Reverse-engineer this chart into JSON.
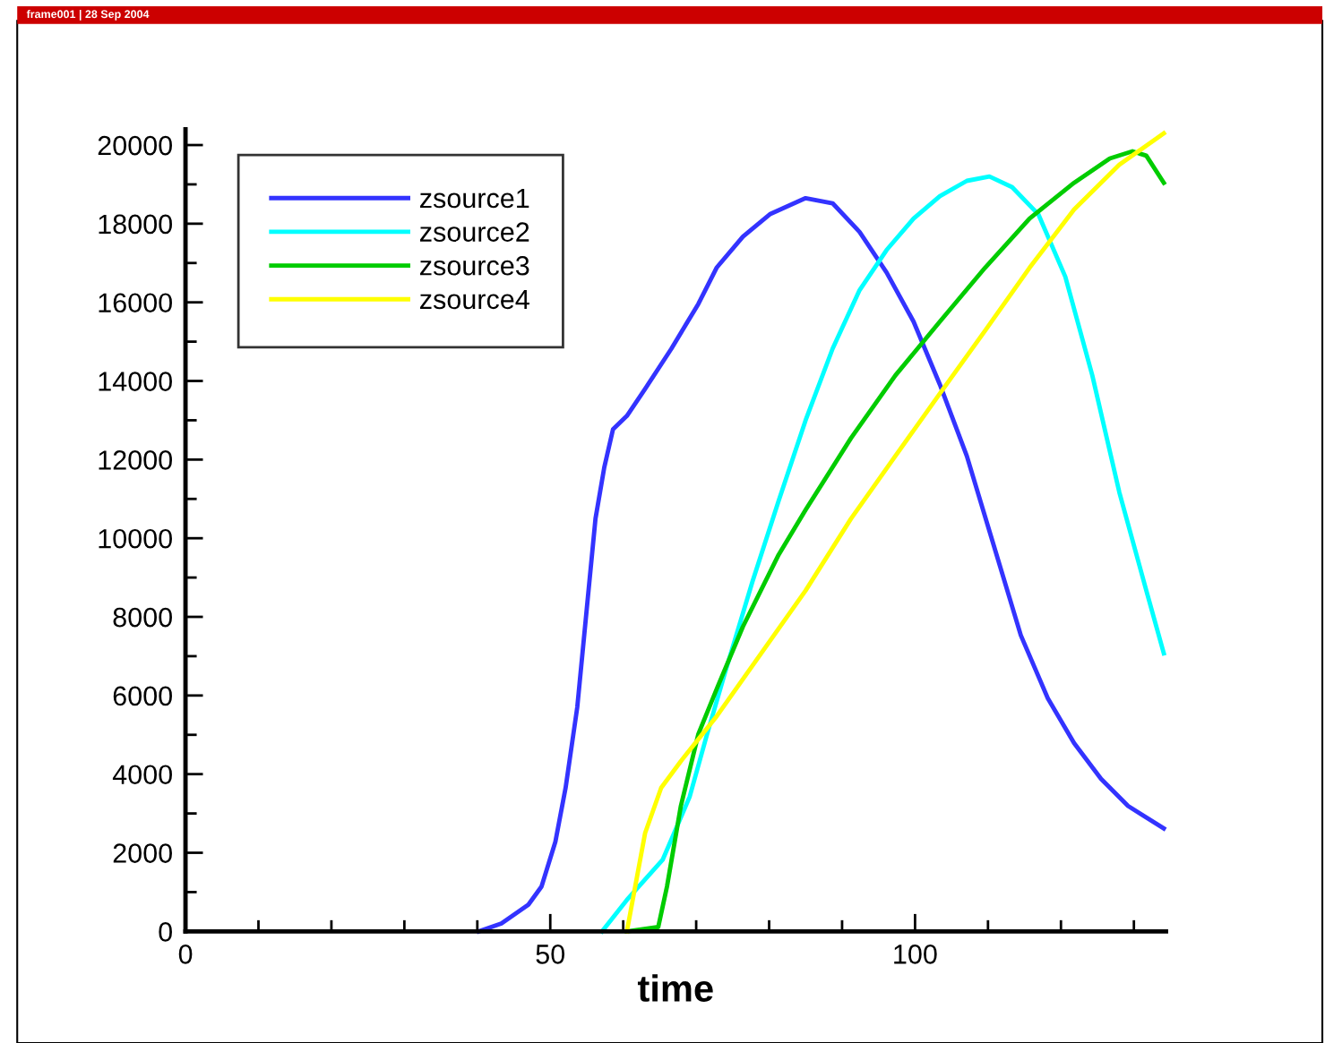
{
  "chart_data": {
    "type": "line",
    "xlabel": "time",
    "annotations": [
      "frame001 | 28 Sep 2004"
    ],
    "xlim": [
      0,
      134.4
    ],
    "ylim": [
      0,
      20400
    ],
    "xticks": [
      0,
      {
        "value": 10,
        "label": null
      },
      {
        "value": 20,
        "label": null
      },
      {
        "value": 30,
        "label": null
      },
      {
        "value": 40,
        "label": null
      },
      50,
      {
        "value": 60,
        "label": null
      },
      {
        "value": 70,
        "label": null
      },
      {
        "value": 80,
        "label": null
      },
      {
        "value": 90,
        "label": null
      },
      100,
      {
        "value": 110,
        "label": null
      },
      {
        "value": 120,
        "label": null
      },
      {
        "value": 130,
        "label": null
      }
    ],
    "yticks": [
      0,
      {
        "value": 1000,
        "label": null
      },
      2000,
      {
        "value": 3000,
        "label": null
      },
      4000,
      {
        "value": 5000,
        "label": null
      },
      6000,
      {
        "value": 7000,
        "label": null
      },
      8000,
      {
        "value": 9000,
        "label": null
      },
      10000,
      {
        "value": 11000,
        "label": null
      },
      12000,
      {
        "value": 13000,
        "label": null
      },
      14000,
      {
        "value": 15000,
        "label": null
      },
      16000,
      {
        "value": 17000,
        "label": null
      },
      18000,
      {
        "value": 19000,
        "label": null
      },
      20000
    ],
    "grid": false,
    "legend": "top left",
    "line_style": "solid",
    "marker": "none",
    "series": [
      {
        "name": "zsource1",
        "color": "#3333ff",
        "x": [
          40.2,
          43.3,
          47,
          48.8,
          50.7,
          52.1,
          53.7,
          55,
          56.2,
          57.4,
          58.6,
          60.5,
          63,
          66.6,
          70.3,
          72.8,
          76.4,
          80.1,
          85,
          88.7,
          92.4,
          96.1,
          99.8,
          103.4,
          107.1,
          110.8,
          114.5,
          118.2,
          121.8,
          125.5,
          129.2,
          134.1
        ],
        "values": [
          0,
          200,
          680,
          1140,
          2280,
          3650,
          5700,
          8200,
          10500,
          11800,
          12770,
          13110,
          13800,
          14820,
          15960,
          16880,
          17670,
          18240,
          18650,
          18520,
          17790,
          16760,
          15510,
          13910,
          12090,
          9810,
          7530,
          5930,
          4790,
          3880,
          3190,
          2620
        ]
      },
      {
        "name": "zsource2",
        "color": "#00ffff",
        "x": [
          57.1,
          60.5,
          65.4,
          69.1,
          71.5,
          74,
          77.7,
          81.3,
          85,
          88.7,
          92.4,
          96.1,
          99.8,
          103.4,
          107.1,
          110.2,
          113.3,
          116.9,
          120.6,
          124.3,
          128,
          131.7,
          134.1
        ],
        "values": [
          0,
          800,
          1820,
          3420,
          5020,
          6610,
          8890,
          10950,
          13000,
          14820,
          16310,
          17330,
          18130,
          18700,
          19090,
          19200,
          18930,
          18240,
          16650,
          14140,
          11170,
          8670,
          7070
        ]
      },
      {
        "name": "zsource3",
        "color": "#00cc00",
        "x": [
          60.5,
          64.8,
          66,
          67.9,
          70.3,
          72.8,
          76.4,
          81.3,
          85,
          91.2,
          97.3,
          103.4,
          109.6,
          115.7,
          121.8,
          126.7,
          129.8,
          131.7,
          134.1
        ],
        "values": [
          0,
          110,
          1140,
          3190,
          5020,
          6160,
          7750,
          9580,
          10720,
          12540,
          14140,
          15510,
          16880,
          18130,
          19040,
          19660,
          19840,
          19730,
          19040
        ]
      },
      {
        "name": "zsource4",
        "color": "#ffff00",
        "x": [
          60.5,
          63,
          65.2,
          67.9,
          72.8,
          78.9,
          85,
          91.2,
          97.3,
          103.4,
          109.6,
          115.7,
          121.8,
          128,
          134.1
        ],
        "values": [
          0,
          2500,
          3650,
          4330,
          5470,
          7070,
          8670,
          10490,
          12090,
          13680,
          15280,
          16880,
          18360,
          19500,
          20300
        ]
      }
    ]
  }
}
